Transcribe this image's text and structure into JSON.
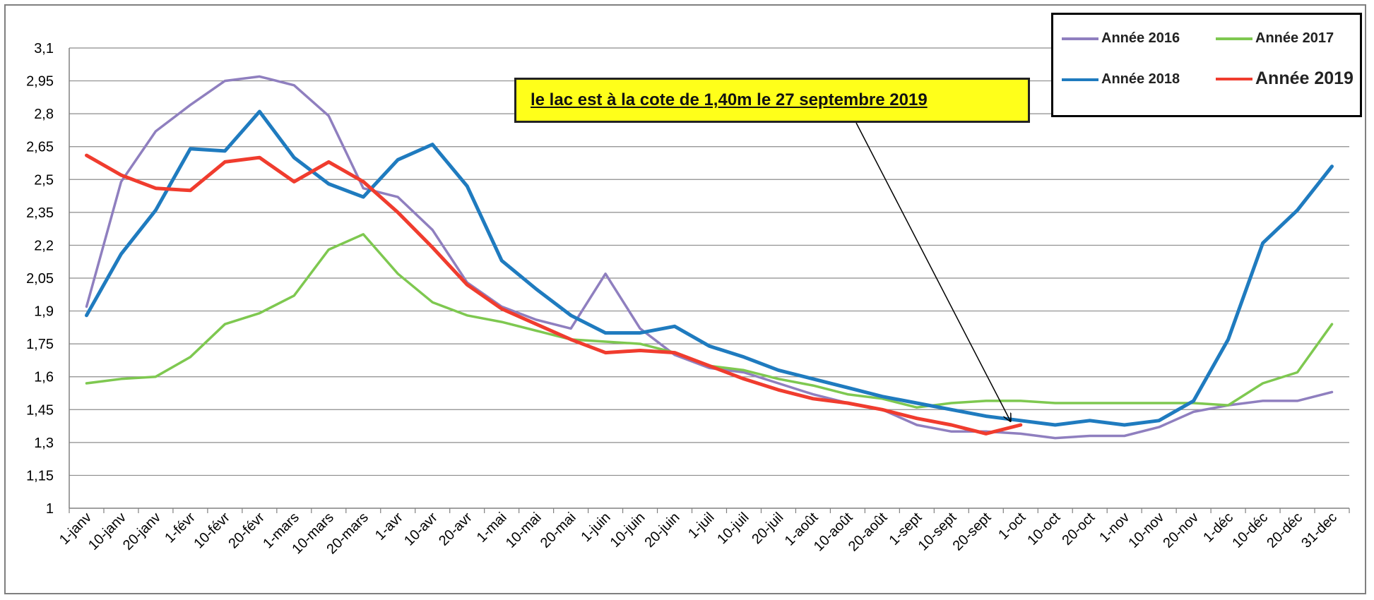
{
  "chart_data": {
    "type": "line",
    "categories": [
      "1-janv",
      "10-janv",
      "20-janv",
      "1-févr",
      "10-févr",
      "20-févr",
      "1-mars",
      "10-mars",
      "20-mars",
      "1-avr",
      "10-avr",
      "20-avr",
      "1-mai",
      "10-mai",
      "20-mai",
      "1-juin",
      "10-juin",
      "20-juin",
      "1-juil",
      "10-juil",
      "20-juil",
      "1-août",
      "10-août",
      "20-août",
      "1-sept",
      "10-sept",
      "20-sept",
      "1-oct",
      "10-oct",
      "20-oct",
      "1-nov",
      "10-nov",
      "20-nov",
      "1-déc",
      "10-déc",
      "20-déc",
      "31-dec"
    ],
    "yticks": [
      "3,1",
      "2,95",
      "2,8",
      "2,65",
      "2,5",
      "2,35",
      "2,2",
      "2,05",
      "1,9",
      "1,75",
      "1,6",
      "1,45",
      "1,3",
      "1,15",
      "1"
    ],
    "ylim": [
      1,
      3.1
    ],
    "grid": true,
    "legend_position": "top-right",
    "series": [
      {
        "name": "Année 2016",
        "color": "#8f7fbf",
        "values": [
          1.92,
          2.49,
          2.72,
          2.84,
          2.95,
          2.97,
          2.93,
          2.79,
          2.46,
          2.42,
          2.27,
          2.03,
          1.92,
          1.86,
          1.82,
          2.07,
          1.82,
          1.7,
          1.64,
          1.62,
          1.57,
          1.52,
          1.48,
          1.45,
          1.38,
          1.35,
          1.35,
          1.34,
          1.32,
          1.33,
          1.33,
          1.37,
          1.44,
          1.47,
          1.49,
          1.49,
          1.53
        ]
      },
      {
        "name": "Année 2017",
        "color": "#7ec850",
        "values": [
          1.57,
          1.59,
          1.6,
          1.69,
          1.84,
          1.89,
          1.97,
          2.18,
          2.25,
          2.07,
          1.94,
          1.88,
          1.85,
          1.81,
          1.77,
          1.76,
          1.75,
          1.71,
          1.65,
          1.63,
          1.59,
          1.56,
          1.52,
          1.5,
          1.46,
          1.48,
          1.49,
          1.49,
          1.48,
          1.48,
          1.48,
          1.48,
          1.48,
          1.47,
          1.57,
          1.62,
          1.84
        ]
      },
      {
        "name": "Année 2018",
        "color": "#1f7bbf",
        "values": [
          1.88,
          2.16,
          2.36,
          2.64,
          2.63,
          2.81,
          2.6,
          2.48,
          2.42,
          2.59,
          2.66,
          2.47,
          2.13,
          2.0,
          1.88,
          1.8,
          1.8,
          1.83,
          1.74,
          1.69,
          1.63,
          1.59,
          1.55,
          1.51,
          1.48,
          1.45,
          1.42,
          1.4,
          1.38,
          1.4,
          1.38,
          1.4,
          1.49,
          1.77,
          2.21,
          2.36,
          2.56
        ]
      },
      {
        "name": "Année 2019",
        "color": "#f03c2e",
        "values": [
          2.61,
          2.52,
          2.46,
          2.45,
          2.58,
          2.6,
          2.49,
          2.58,
          2.49,
          2.35,
          2.19,
          2.02,
          1.91,
          1.84,
          1.77,
          1.71,
          1.72,
          1.71,
          1.65,
          1.59,
          1.54,
          1.5,
          1.48,
          1.45,
          1.41,
          1.38,
          1.34,
          1.38,
          null,
          null,
          null,
          null,
          null,
          null,
          null,
          null,
          null
        ]
      }
    ],
    "annotation": {
      "text": "le lac est à la cote de 1,40m le 27 septembre  2019",
      "target_category_index": 26.7,
      "target_value": 1.38
    }
  }
}
